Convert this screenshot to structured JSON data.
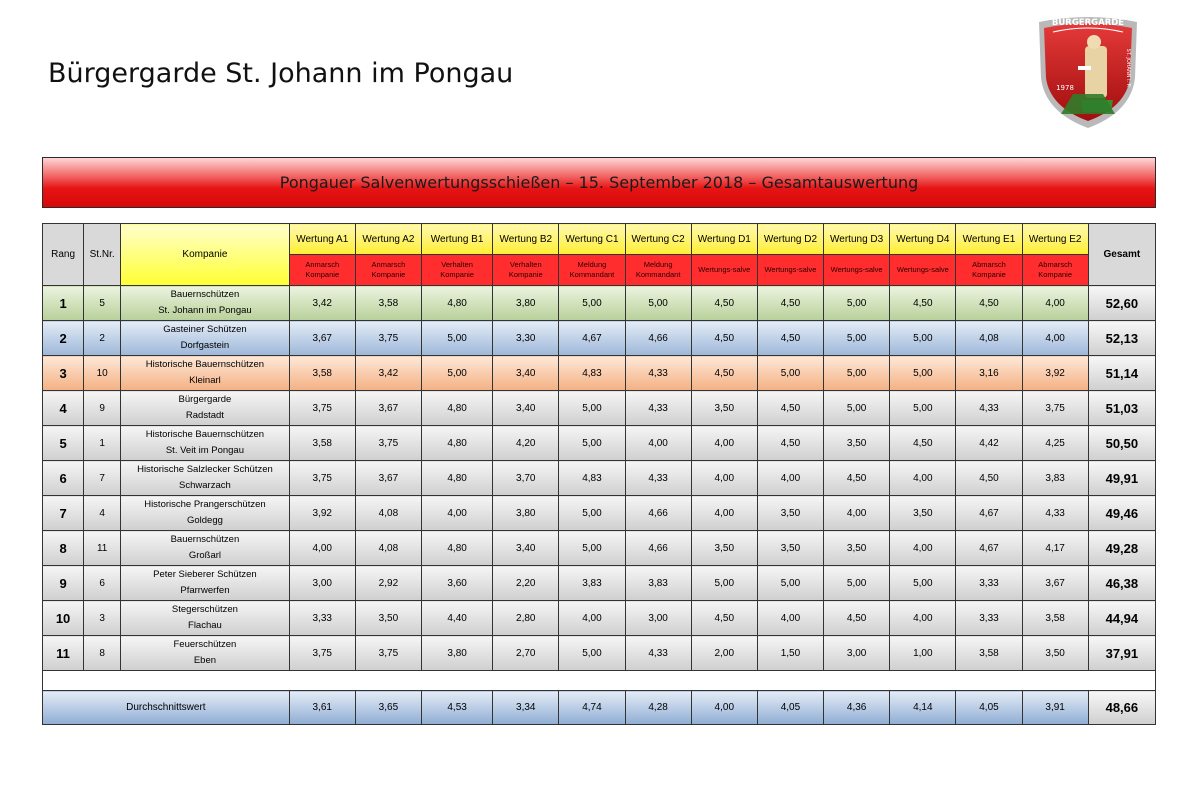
{
  "page": {
    "title": "Bürgergarde St. Johann im Pongau",
    "banner": "Pongauer Salvenwertungsschießen – 15. September 2018 – Gesamtauswertung"
  },
  "logo": {
    "label": "BÜRGERGARDE",
    "year": "1978",
    "side_text": "ST. JOHANN i. P."
  },
  "colors": {
    "banner_red": "#e61414",
    "header_yellow": "#ffee33",
    "subheader_red": "#ff2d2d",
    "rank1_green": "#b8d09a",
    "rank2_blue": "#9db7d9",
    "rank3_orange": "#f4b083",
    "rest_gray": "#cfcfcf"
  },
  "table": {
    "head": {
      "rang": "Rang",
      "stnr": "St.Nr.",
      "kompanie": "Kompanie",
      "gesamt": "Gesamt"
    },
    "criteria": [
      {
        "label": "Wertung A1",
        "sub1": "Anmarsch",
        "sub2": "Kompanie"
      },
      {
        "label": "Wertung A2",
        "sub1": "Anmarsch",
        "sub2": "Kompanie"
      },
      {
        "label": "Wertung B1",
        "sub1": "Verhalten",
        "sub2": "Kompanie"
      },
      {
        "label": "Wertung B2",
        "sub1": "Verhalten",
        "sub2": "Kompanie"
      },
      {
        "label": "Wertung C1",
        "sub1": "Meldung",
        "sub2": "Kommandant"
      },
      {
        "label": "Wertung C2",
        "sub1": "Meldung",
        "sub2": "Kommandant"
      },
      {
        "label": "Wertung D1",
        "sub1": "Wertungs-salve",
        "sub2": ""
      },
      {
        "label": "Wertung D2",
        "sub1": "Wertungs-salve",
        "sub2": ""
      },
      {
        "label": "Wertung D3",
        "sub1": "Wertungs-salve",
        "sub2": ""
      },
      {
        "label": "Wertung D4",
        "sub1": "Wertungs-salve",
        "sub2": ""
      },
      {
        "label": "Wertung E1",
        "sub1": "Abmarsch",
        "sub2": "Kompanie"
      },
      {
        "label": "Wertung E2",
        "sub1": "Abmarsch",
        "sub2": "Kompanie"
      }
    ],
    "rows": [
      {
        "rang": "1",
        "stnr": "5",
        "name1": "Bauernschützen",
        "name2": "St. Johann im Pongau",
        "scores": [
          "3,42",
          "3,58",
          "4,80",
          "3,80",
          "5,00",
          "5,00",
          "4,50",
          "4,50",
          "5,00",
          "4,50",
          "4,50",
          "4,00"
        ],
        "total": "52,60"
      },
      {
        "rang": "2",
        "stnr": "2",
        "name1": "Gasteiner Schützen",
        "name2": "Dorfgastein",
        "scores": [
          "3,67",
          "3,75",
          "5,00",
          "3,30",
          "4,67",
          "4,66",
          "4,50",
          "4,50",
          "5,00",
          "5,00",
          "4,08",
          "4,00"
        ],
        "total": "52,13"
      },
      {
        "rang": "3",
        "stnr": "10",
        "name1": "Historische Bauernschützen",
        "name2": "Kleinarl",
        "scores": [
          "3,58",
          "3,42",
          "5,00",
          "3,40",
          "4,83",
          "4,33",
          "4,50",
          "5,00",
          "5,00",
          "5,00",
          "3,16",
          "3,92"
        ],
        "total": "51,14"
      },
      {
        "rang": "4",
        "stnr": "9",
        "name1": "Bürgergarde",
        "name2": "Radstadt",
        "scores": [
          "3,75",
          "3,67",
          "4,80",
          "3,40",
          "5,00",
          "4,33",
          "3,50",
          "4,50",
          "5,00",
          "5,00",
          "4,33",
          "3,75"
        ],
        "total": "51,03"
      },
      {
        "rang": "5",
        "stnr": "1",
        "name1": "Historische Bauernschützen",
        "name2": "St. Veit im Pongau",
        "scores": [
          "3,58",
          "3,75",
          "4,80",
          "4,20",
          "5,00",
          "4,00",
          "4,00",
          "4,50",
          "3,50",
          "4,50",
          "4,42",
          "4,25"
        ],
        "total": "50,50"
      },
      {
        "rang": "6",
        "stnr": "7",
        "name1": "Historische Salzlecker Schützen",
        "name2": "Schwarzach",
        "scores": [
          "3,75",
          "3,67",
          "4,80",
          "3,70",
          "4,83",
          "4,33",
          "4,00",
          "4,00",
          "4,50",
          "4,00",
          "4,50",
          "3,83"
        ],
        "total": "49,91"
      },
      {
        "rang": "7",
        "stnr": "4",
        "name1": "Historische Prangerschützen",
        "name2": "Goldegg",
        "scores": [
          "3,92",
          "4,08",
          "4,00",
          "3,80",
          "5,00",
          "4,66",
          "4,00",
          "3,50",
          "4,00",
          "3,50",
          "4,67",
          "4,33"
        ],
        "total": "49,46"
      },
      {
        "rang": "8",
        "stnr": "11",
        "name1": "Bauernschützen",
        "name2": "Großarl",
        "scores": [
          "4,00",
          "4,08",
          "4,80",
          "3,40",
          "5,00",
          "4,66",
          "3,50",
          "3,50",
          "3,50",
          "4,00",
          "4,67",
          "4,17"
        ],
        "total": "49,28"
      },
      {
        "rang": "9",
        "stnr": "6",
        "name1": "Peter Sieberer Schützen",
        "name2": "Pfarrwerfen",
        "scores": [
          "3,00",
          "2,92",
          "3,60",
          "2,20",
          "3,83",
          "3,83",
          "5,00",
          "5,00",
          "5,00",
          "5,00",
          "3,33",
          "3,67"
        ],
        "total": "46,38"
      },
      {
        "rang": "10",
        "stnr": "3",
        "name1": "Stegerschützen",
        "name2": "Flachau",
        "scores": [
          "3,33",
          "3,50",
          "4,40",
          "2,80",
          "4,00",
          "3,00",
          "4,50",
          "4,00",
          "4,50",
          "4,00",
          "3,33",
          "3,58"
        ],
        "total": "44,94"
      },
      {
        "rang": "11",
        "stnr": "8",
        "name1": "Feuerschützen",
        "name2": "Eben",
        "scores": [
          "3,75",
          "3,75",
          "3,80",
          "2,70",
          "5,00",
          "4,33",
          "2,00",
          "1,50",
          "3,00",
          "1,00",
          "3,58",
          "3,50"
        ],
        "total": "37,91"
      }
    ],
    "average": {
      "label": "Durchschnittswert",
      "scores": [
        "3,61",
        "3,65",
        "4,53",
        "3,34",
        "4,74",
        "4,28",
        "4,00",
        "4,05",
        "4,36",
        "4,14",
        "4,05",
        "3,91"
      ],
      "total": "48,66"
    }
  }
}
